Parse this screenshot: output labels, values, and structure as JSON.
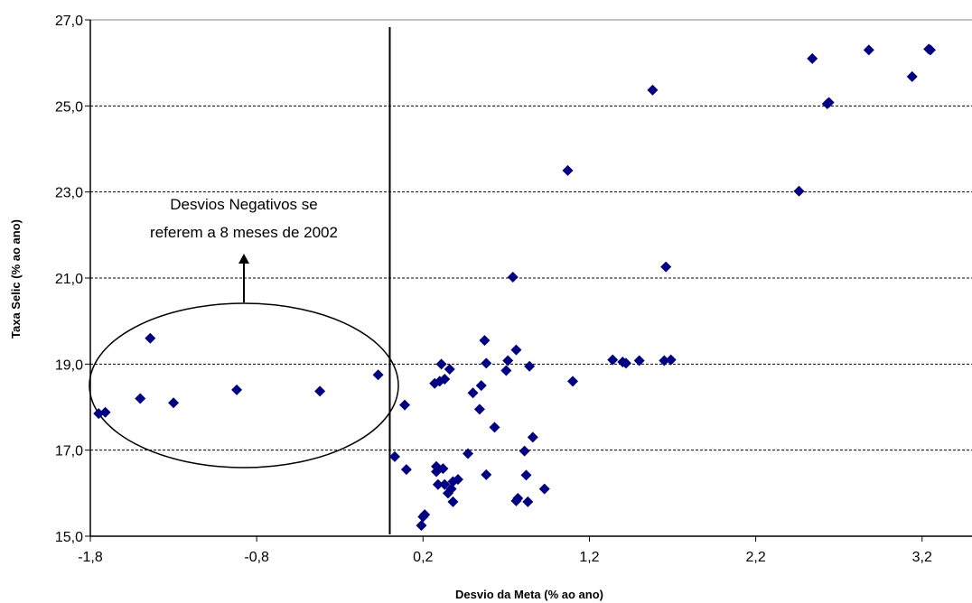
{
  "chart_data": {
    "type": "scatter",
    "xlabel": "Desvio da Meta (% ao ano)",
    "ylabel": "Taxa Selic (% ao ano)",
    "xlim": [
      -1.8,
      3.5
    ],
    "ylim": [
      15.0,
      27.0
    ],
    "x_ticks": [
      -1.8,
      -0.8,
      0.2,
      1.2,
      2.2,
      3.2
    ],
    "x_tick_labels": [
      "-1,8",
      "-0,8",
      "0,2",
      "1,2",
      "2,2",
      "3,2"
    ],
    "y_ticks": [
      15.0,
      17.0,
      19.0,
      21.0,
      23.0,
      25.0,
      27.0
    ],
    "y_tick_labels": [
      "15,0",
      "17,0",
      "19,0",
      "21,0",
      "23,0",
      "25,0",
      "27,0"
    ],
    "grid": "horizontal dashed",
    "vertical_line_x": 0.0,
    "marker_color": "#000080",
    "points": [
      [
        -1.75,
        17.85
      ],
      [
        -1.71,
        17.88
      ],
      [
        -1.5,
        18.2
      ],
      [
        -1.44,
        19.6
      ],
      [
        -1.3,
        18.1
      ],
      [
        -0.92,
        18.4
      ],
      [
        -0.42,
        18.37
      ],
      [
        -0.07,
        18.75
      ],
      [
        0.03,
        16.85
      ],
      [
        0.09,
        18.05
      ],
      [
        0.1,
        16.55
      ],
      [
        0.19,
        15.25
      ],
      [
        0.2,
        15.45
      ],
      [
        0.21,
        15.5
      ],
      [
        0.27,
        18.55
      ],
      [
        0.28,
        16.5
      ],
      [
        0.28,
        16.62
      ],
      [
        0.29,
        16.2
      ],
      [
        0.3,
        18.6
      ],
      [
        0.31,
        19.0
      ],
      [
        0.32,
        16.57
      ],
      [
        0.33,
        18.65
      ],
      [
        0.33,
        16.2
      ],
      [
        0.35,
        16.0
      ],
      [
        0.36,
        18.88
      ],
      [
        0.37,
        16.1
      ],
      [
        0.38,
        16.27
      ],
      [
        0.38,
        15.8
      ],
      [
        0.41,
        16.32
      ],
      [
        0.47,
        16.92
      ],
      [
        0.5,
        18.33
      ],
      [
        0.54,
        17.95
      ],
      [
        0.55,
        18.5
      ],
      [
        0.57,
        19.55
      ],
      [
        0.58,
        19.02
      ],
      [
        0.58,
        16.43
      ],
      [
        0.63,
        17.53
      ],
      [
        0.7,
        18.85
      ],
      [
        0.71,
        19.08
      ],
      [
        0.74,
        21.02
      ],
      [
        0.76,
        19.33
      ],
      [
        0.76,
        15.82
      ],
      [
        0.77,
        15.88
      ],
      [
        0.81,
        16.98
      ],
      [
        0.82,
        16.42
      ],
      [
        0.83,
        15.8
      ],
      [
        0.84,
        18.95
      ],
      [
        0.86,
        17.3
      ],
      [
        0.93,
        16.1
      ],
      [
        1.07,
        23.5
      ],
      [
        1.1,
        18.6
      ],
      [
        1.34,
        19.1
      ],
      [
        1.4,
        19.05
      ],
      [
        1.42,
        19.02
      ],
      [
        1.5,
        19.08
      ],
      [
        1.58,
        25.37
      ],
      [
        1.65,
        19.08
      ],
      [
        1.66,
        21.26
      ],
      [
        1.69,
        19.1
      ],
      [
        2.46,
        23.02
      ],
      [
        2.54,
        26.1
      ],
      [
        2.63,
        25.05
      ],
      [
        2.64,
        25.08
      ],
      [
        2.88,
        26.3
      ],
      [
        3.14,
        25.68
      ],
      [
        3.24,
        26.32
      ],
      [
        3.25,
        26.3
      ]
    ],
    "annotation": {
      "lines": [
        "Desvios Negativos se",
        "referem a 8 meses de 2002"
      ]
    }
  }
}
